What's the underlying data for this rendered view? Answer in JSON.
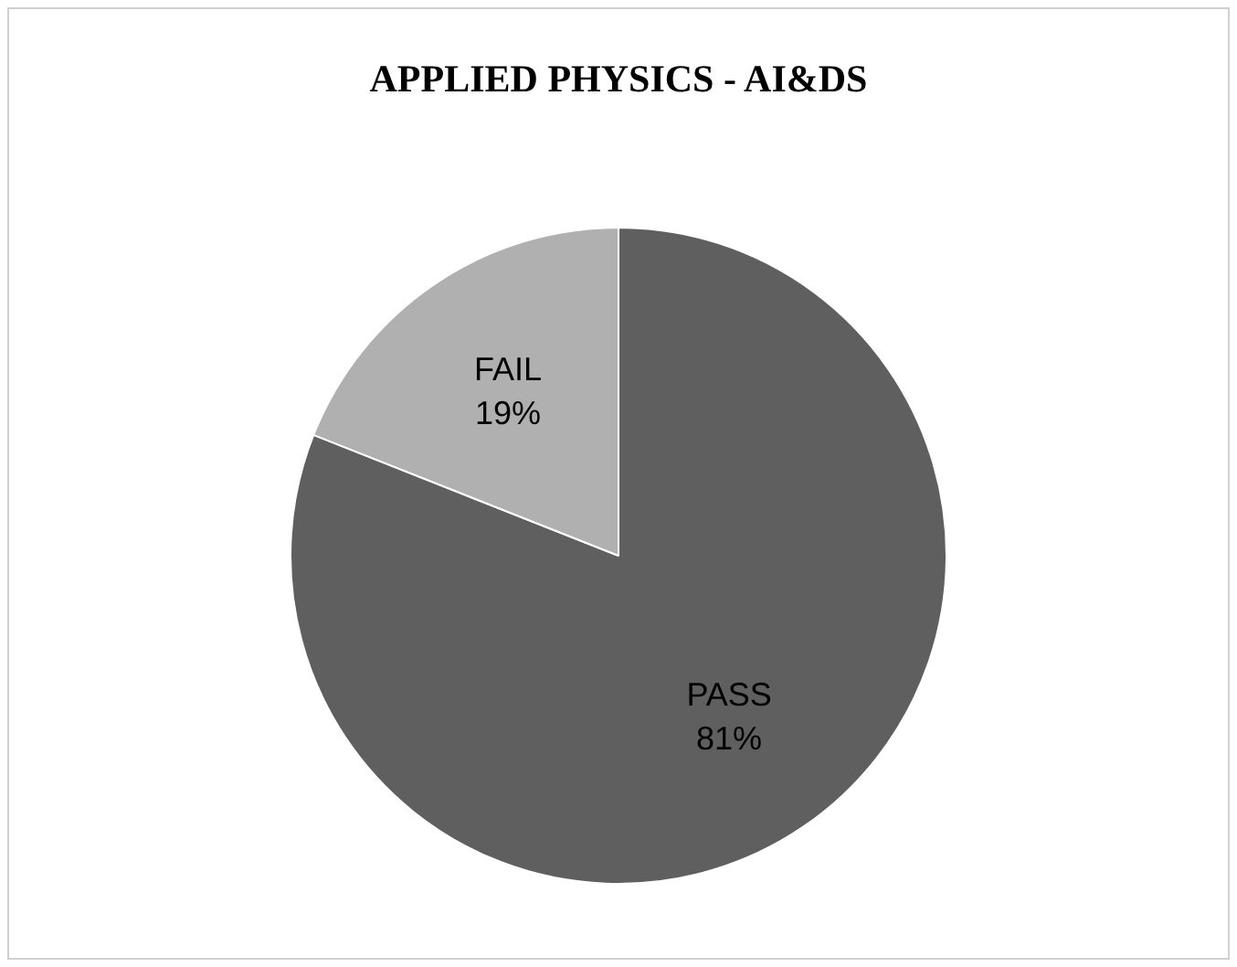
{
  "chart_data": {
    "type": "pie",
    "title": "APPLIED PHYSICS - AI&DS",
    "categories": [
      "PASS",
      "FAIL"
    ],
    "values": [
      81,
      19
    ],
    "colors": [
      "#5f5f5f",
      "#b0b0b0"
    ],
    "value_labels": [
      "81%",
      "19%"
    ],
    "legend": false
  }
}
